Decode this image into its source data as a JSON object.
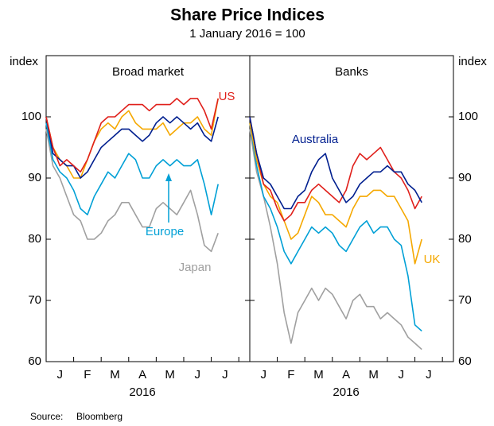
{
  "header": {
    "title": "Share Price Indices",
    "subtitle": "1 January 2016 = 100",
    "y_label": "index",
    "source_label": "Source:",
    "source": "Bloomberg"
  },
  "chart_data": [
    {
      "type": "line",
      "title": "Broad market",
      "x": [
        0,
        0.25,
        0.5,
        0.75,
        1,
        1.25,
        1.5,
        1.75,
        2,
        2.25,
        2.5,
        2.75,
        3,
        3.25,
        3.5,
        3.75,
        4,
        4.25,
        4.5,
        4.75,
        5,
        5.25,
        5.5,
        5.75,
        6,
        6.25
      ],
      "xlim": [
        0,
        7.4
      ],
      "xticks": [
        1,
        2,
        3,
        4,
        5,
        6,
        7
      ],
      "month_labels": [
        "J",
        "F",
        "M",
        "A",
        "M",
        "J",
        "J"
      ],
      "year_label": "2016",
      "ylim": [
        60,
        110
      ],
      "yticks": [
        60,
        70,
        80,
        90,
        100
      ],
      "series": [
        {
          "name": "Japan",
          "color": "#a0a0a0",
          "values": [
            98,
            92,
            90,
            87,
            84,
            83,
            80,
            80,
            81,
            83,
            84,
            86,
            86,
            84,
            82,
            82,
            85,
            86,
            85,
            84,
            86,
            88,
            84,
            79,
            78,
            81
          ]
        },
        {
          "name": "Europe",
          "color": "#00a0d6",
          "values": [
            99,
            93,
            91,
            90,
            88,
            85,
            84,
            87,
            89,
            91,
            90,
            92,
            94,
            93,
            90,
            90,
            92,
            93,
            92,
            93,
            92,
            92,
            93,
            89,
            84,
            89
          ]
        },
        {
          "color": "#f5a800",
          "values": [
            100,
            95,
            93,
            92,
            90,
            90,
            93,
            96,
            98,
            99,
            98,
            100,
            101,
            99,
            98,
            98,
            98,
            99,
            97,
            98,
            99,
            99,
            100,
            98,
            97,
            103
          ]
        },
        {
          "color": "#001f8f",
          "values": [
            100,
            94,
            93,
            92,
            92,
            90,
            91,
            93,
            95,
            96,
            97,
            98,
            98,
            97,
            96,
            97,
            99,
            100,
            99,
            100,
            99,
            98,
            99,
            97,
            96,
            100
          ]
        },
        {
          "name": "US",
          "color": "#e0201b",
          "values": [
            100,
            95,
            92,
            93,
            92,
            91,
            93,
            96,
            99,
            100,
            100,
            101,
            102,
            102,
            102,
            101,
            102,
            102,
            102,
            103,
            102,
            103,
            103,
            101,
            98,
            103
          ]
        }
      ]
    },
    {
      "type": "line",
      "title": "Banks",
      "x": [
        0,
        0.25,
        0.5,
        0.75,
        1,
        1.25,
        1.5,
        1.75,
        2,
        2.25,
        2.5,
        2.75,
        3,
        3.25,
        3.5,
        3.75,
        4,
        4.25,
        4.5,
        4.75,
        5,
        5.25,
        5.5,
        5.75,
        6,
        6.25
      ],
      "xlim": [
        0,
        7.4
      ],
      "xticks": [
        1,
        2,
        3,
        4,
        5,
        6,
        7
      ],
      "month_labels": [
        "J",
        "F",
        "M",
        "A",
        "M",
        "J",
        "J"
      ],
      "year_label": "2016",
      "ylim": [
        60,
        110
      ],
      "yticks": [
        60,
        70,
        80,
        90,
        100
      ],
      "series": [
        {
          "color": "#a0a0a0",
          "values": [
            98,
            91,
            87,
            82,
            76,
            68,
            63,
            68,
            70,
            72,
            70,
            72,
            71,
            69,
            67,
            70,
            71,
            69,
            69,
            67,
            68,
            67,
            66,
            64,
            63,
            62
          ]
        },
        {
          "color": "#00a0d6",
          "values": [
            99,
            92,
            87,
            85,
            82,
            78,
            76,
            78,
            80,
            82,
            81,
            82,
            81,
            79,
            78,
            80,
            82,
            83,
            81,
            82,
            82,
            80,
            79,
            74,
            66,
            65
          ]
        },
        {
          "name": "UK",
          "color": "#f5a800",
          "values": [
            99,
            93,
            89,
            87,
            86,
            83,
            80,
            81,
            84,
            87,
            86,
            84,
            84,
            83,
            82,
            85,
            87,
            87,
            88,
            88,
            87,
            87,
            85,
            83,
            76,
            80
          ]
        },
        {
          "color": "#e0201b",
          "values": [
            100,
            94,
            89,
            88,
            85,
            83,
            84,
            86,
            86,
            88,
            89,
            88,
            87,
            86,
            88,
            92,
            94,
            93,
            94,
            95,
            93,
            91,
            90,
            88,
            85,
            87
          ]
        },
        {
          "name": "Australia",
          "color": "#001f8f",
          "values": [
            100,
            94,
            90,
            89,
            87,
            85,
            85,
            87,
            88,
            91,
            93,
            94,
            90,
            88,
            86,
            87,
            89,
            90,
            91,
            91,
            92,
            91,
            91,
            89,
            88,
            86
          ]
        }
      ]
    }
  ]
}
